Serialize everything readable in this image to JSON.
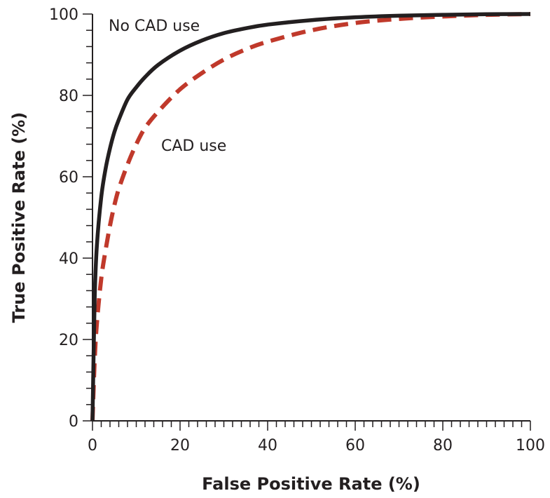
{
  "chart_data": {
    "type": "line",
    "title": "",
    "xlabel": "False Positive Rate (%)",
    "ylabel": "True Positive Rate (%)",
    "xlim": [
      0,
      100
    ],
    "ylim": [
      0,
      100
    ],
    "x_ticks": [
      0,
      20,
      40,
      60,
      80,
      100
    ],
    "y_ticks": [
      0,
      20,
      40,
      60,
      80,
      100
    ],
    "x_minor_step": 2,
    "y_minor_step": 4,
    "grid": false,
    "legend": "none",
    "series": [
      {
        "name": "No CAD use",
        "color": "#231f20",
        "style": "solid",
        "x": [
          0,
          0.5,
          1,
          2,
          3,
          4,
          5,
          6,
          8,
          10,
          12,
          15,
          20,
          25,
          30,
          35,
          40,
          50,
          60,
          70,
          80,
          90,
          100
        ],
        "y": [
          0,
          30,
          43,
          55,
          62,
          67,
          71,
          74,
          79,
          82,
          84.5,
          87.5,
          91,
          93.5,
          95.3,
          96.5,
          97.4,
          98.5,
          99.2,
          99.6,
          99.8,
          99.95,
          100
        ]
      },
      {
        "name": "CAD use",
        "color": "#c0392b",
        "style": "dashed",
        "x": [
          0,
          0.5,
          1,
          2,
          3,
          4,
          5,
          6,
          8,
          10,
          12,
          15,
          20,
          25,
          30,
          35,
          40,
          50,
          60,
          70,
          80,
          90,
          100
        ],
        "y": [
          0,
          15,
          24,
          35,
          42,
          48,
          53,
          57,
          63,
          68,
          72,
          76,
          81.5,
          85.5,
          88.8,
          91.3,
          93.2,
          96,
          97.8,
          98.8,
          99.4,
          99.8,
          100
        ]
      }
    ],
    "annotations": [
      {
        "text": "No CAD use",
        "series": "No CAD use"
      },
      {
        "text": "CAD use",
        "series": "CAD use"
      }
    ]
  }
}
